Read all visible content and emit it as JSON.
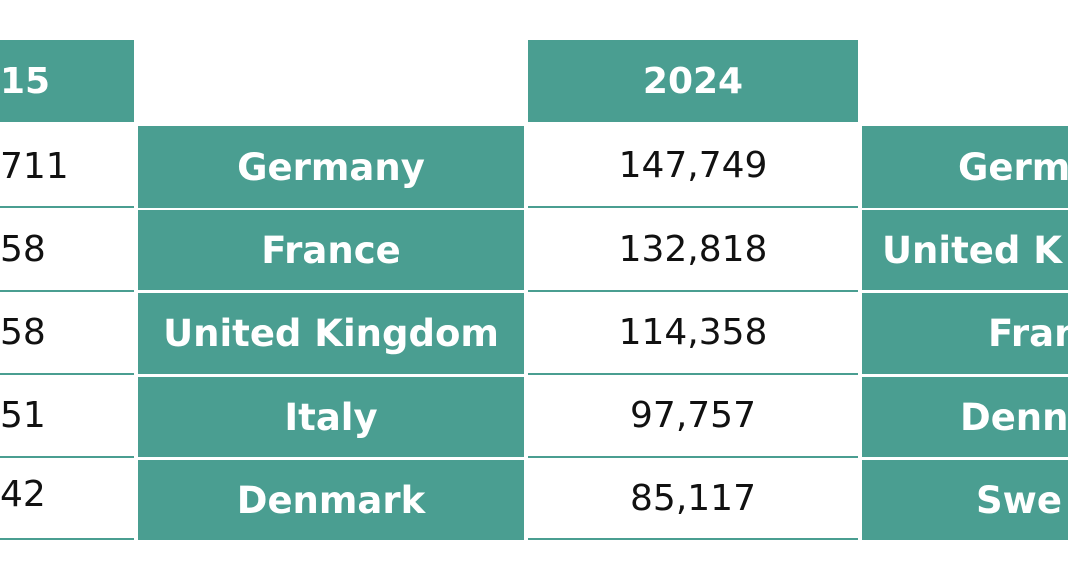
{
  "left_partial": {
    "header": "15",
    "values": [
      "711",
      "58",
      "58",
      "51",
      "42"
    ]
  },
  "middle": {
    "year": "2024",
    "countries": [
      "Germany",
      "France",
      "United Kingdom",
      "Italy",
      "Denmark"
    ],
    "values": [
      "147,749",
      "132,818",
      "114,358",
      "97,757",
      "85,117"
    ]
  },
  "right_partial": {
    "countries": [
      "Germ",
      "United K",
      "Fran",
      "Denn",
      "Swe"
    ]
  },
  "colors": {
    "accent": "#4a9e91",
    "text_dark": "#111111",
    "text_light": "#ffffff"
  }
}
